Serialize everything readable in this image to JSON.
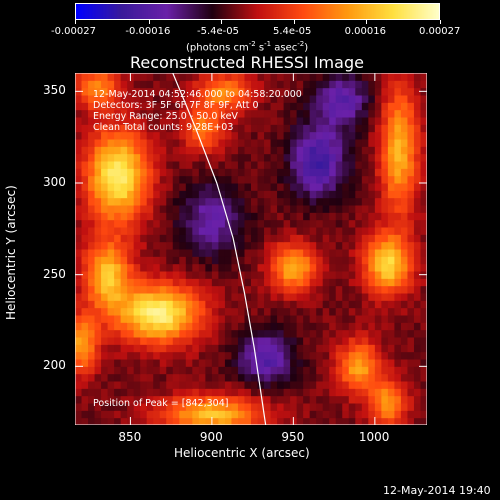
{
  "chart_data": {
    "type": "heatmap",
    "title": "Reconstructed RHESSI Image",
    "xlabel": "Heliocentric X (arcsec)",
    "ylabel": "Heliocentric Y (arcsec)",
    "xlim": [
      816,
      1032
    ],
    "ylim": [
      168,
      360
    ],
    "x_ticks": [
      "850",
      "900",
      "950",
      "1000"
    ],
    "x_tick_values": [
      850,
      900,
      950,
      1000
    ],
    "y_ticks": [
      "200",
      "250",
      "300",
      "350"
    ],
    "y_tick_values": [
      200,
      250,
      300,
      350
    ],
    "colorbar": {
      "ticks": [
        "-0.00027",
        "-0.00016",
        "-5.4e-05",
        "5.4e-05",
        "0.00016",
        "0.00027"
      ],
      "tick_values": [
        -0.00027,
        -0.00016,
        -5.4e-05,
        5.4e-05,
        0.00016,
        0.00027
      ],
      "range": [
        -0.00027,
        0.00027
      ],
      "unit_line1": "(photons cm",
      "unit_sup1": "-2",
      "unit_line2": " s",
      "unit_sup2": "-1",
      "unit_line3": " asec",
      "unit_sup3": "-2",
      "unit_line4": ")",
      "colors": [
        "#0000ff",
        "#3a1a9a",
        "#6a20a8",
        "#200010",
        "#c01010",
        "#ff4a10",
        "#ff9a10",
        "#ffe040",
        "#ffffc8"
      ]
    },
    "info": {
      "time": "12-May-2014 04:52:46.000 to 04:58:20.000",
      "detectors": "Detectors: 3F 5F 6F 7F 8F 9F, Att 0",
      "energy": "Energy Range: 25.0 - 50.0 keV",
      "clean": "Clean     Total counts: 9.28E+03",
      "peak": "Position of Peak = [842,304]"
    },
    "sources": [
      {
        "x": 842,
        "y": 304,
        "amp": 1.0,
        "sx": 13,
        "sy": 17
      },
      {
        "x": 867,
        "y": 229,
        "amp": 1.0,
        "sx": 18,
        "sy": 11
      },
      {
        "x": 836,
        "y": 250,
        "amp": 0.75,
        "sx": 10,
        "sy": 13
      },
      {
        "x": 900,
        "y": 174,
        "amp": 0.75,
        "sx": 22,
        "sy": 7
      },
      {
        "x": 950,
        "y": 254,
        "amp": 0.7,
        "sx": 10,
        "sy": 9
      },
      {
        "x": 1008,
        "y": 256,
        "amp": 0.85,
        "sx": 10,
        "sy": 11
      },
      {
        "x": 1015,
        "y": 318,
        "amp": 0.7,
        "sx": 8,
        "sy": 24
      },
      {
        "x": 990,
        "y": 200,
        "amp": 0.65,
        "sx": 9,
        "sy": 10
      },
      {
        "x": 1008,
        "y": 180,
        "amp": 0.6,
        "sx": 8,
        "sy": 9
      },
      {
        "x": 908,
        "y": 350,
        "amp": 0.55,
        "sx": 12,
        "sy": 7
      },
      {
        "x": 820,
        "y": 212,
        "amp": 0.65,
        "sx": 7,
        "sy": 11
      },
      {
        "x": 830,
        "y": 352,
        "amp": 0.55,
        "sx": 10,
        "sy": 8
      },
      {
        "x": 895,
        "y": 330,
        "amp": 0.5,
        "sx": 9,
        "sy": 9
      },
      {
        "x": 965,
        "y": 312,
        "amp": -0.6,
        "sx": 12,
        "sy": 14
      },
      {
        "x": 933,
        "y": 205,
        "amp": -0.5,
        "sx": 12,
        "sy": 10
      },
      {
        "x": 900,
        "y": 280,
        "amp": -0.4,
        "sx": 14,
        "sy": 14
      },
      {
        "x": 980,
        "y": 345,
        "amp": -0.45,
        "sx": 12,
        "sy": 10
      }
    ],
    "limb_curve": [
      [
        876,
        360
      ],
      [
        890,
        330
      ],
      [
        903,
        300
      ],
      [
        913,
        270
      ],
      [
        920,
        240
      ],
      [
        926,
        210
      ],
      [
        933,
        168
      ]
    ]
  },
  "timestamp": "12-May-2014 19:40"
}
